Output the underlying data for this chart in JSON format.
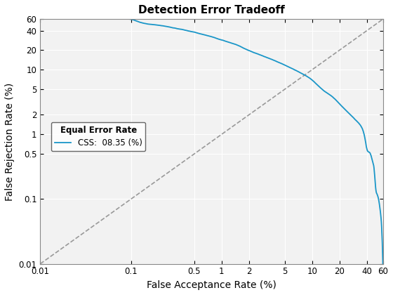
{
  "title": "Detection Error Tradeoff",
  "xlabel": "False Acceptance Rate (%)",
  "ylabel": "False Rejection Rate (%)",
  "xlim": [
    0.01,
    60
  ],
  "ylim": [
    0.01,
    60
  ],
  "xticks": [
    0.01,
    0.1,
    0.5,
    1,
    2,
    5,
    10,
    20,
    40,
    60
  ],
  "yticks": [
    0.01,
    0.1,
    0.5,
    1,
    2,
    5,
    10,
    20,
    40,
    60
  ],
  "xticklabels": [
    "0.01",
    "0.1",
    "0.5",
    "1",
    "2",
    "5",
    "10",
    "20",
    "40",
    "60"
  ],
  "yticklabels": [
    "0.01",
    "0.1",
    "0.5",
    "1",
    "2",
    "5",
    "10",
    "20",
    "40",
    "60"
  ],
  "det_color": "#1a96c8",
  "diag_color": "#999999",
  "legend_title": "Equal Error Rate",
  "legend_label": "CSS:  08.35 (%)",
  "eer": 8.35,
  "title_fontsize": 11,
  "label_fontsize": 10,
  "bg_color": "#f0f0f0",
  "x_ctrl": [
    0.09,
    0.1,
    0.12,
    0.2,
    0.35,
    0.5,
    0.8,
    1.0,
    1.5,
    2.0,
    3.0,
    5.0,
    7.0,
    8.35,
    10.0,
    13.0,
    17.0,
    20.0,
    25.0,
    30.0,
    35.0,
    38.0,
    40.0,
    42.0,
    44.0,
    46.0,
    48.0,
    50.0,
    52.0,
    54.0,
    56.0,
    58.0,
    60.0
  ],
  "y_ctrl": [
    60.0,
    60.0,
    55.0,
    48.0,
    42.0,
    38.0,
    32.0,
    29.0,
    24.0,
    20.0,
    16.0,
    12.0,
    9.5,
    8.35,
    7.0,
    5.0,
    3.8,
    3.0,
    2.2,
    1.7,
    1.3,
    0.9,
    0.6,
    0.55,
    0.5,
    0.4,
    0.3,
    0.15,
    0.12,
    0.1,
    0.07,
    0.04,
    0.01
  ]
}
